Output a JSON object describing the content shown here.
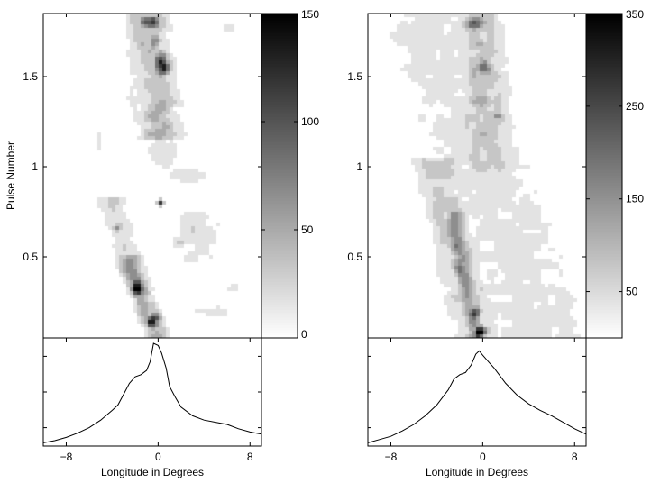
{
  "chart_data": [
    {
      "type": "heatmap",
      "panel": "left-top",
      "ylabel": "Pulse Number",
      "xlim": [
        -10,
        9
      ],
      "ylim": [
        0.05,
        1.85
      ],
      "yticks": [
        0.5,
        1,
        1.5
      ],
      "ytick_labels": [
        "0.5",
        "1",
        "1.5"
      ],
      "colorbar": {
        "ticks": [
          0,
          50,
          100,
          150
        ],
        "labels": [
          "0",
          "50",
          "100",
          "150"
        ],
        "max": 150,
        "color_low": "#ffffff",
        "color_high": "#000000"
      },
      "tracks": [
        {
          "y_range": [
            0.05,
            0.78
          ],
          "x_start": -0.1,
          "x_end": -4.0,
          "width": 1.3,
          "value": 22
        },
        {
          "y_range": [
            0.05,
            0.45
          ],
          "x_start": 0.0,
          "x_end": -2.5,
          "width": 0.9,
          "value": 60
        },
        {
          "y_range": [
            1.2,
            1.85
          ],
          "x_start": 0.2,
          "x_end": -1.0,
          "width": 1.8,
          "value": 40
        }
      ],
      "blobs": [
        {
          "x": -1.8,
          "y": 0.33,
          "sx": 0.5,
          "sy": 0.06,
          "value": 140
        },
        {
          "x": -0.4,
          "y": 0.14,
          "sx": 0.6,
          "sy": 0.045,
          "value": 150
        },
        {
          "x": 0.3,
          "y": 1.57,
          "sx": 0.65,
          "sy": 0.07,
          "value": 150
        },
        {
          "x": -0.8,
          "y": 1.8,
          "sx": 0.8,
          "sy": 0.04,
          "value": 140
        },
        {
          "x": -0.3,
          "y": 1.7,
          "sx": 0.5,
          "sy": 0.05,
          "value": 110
        },
        {
          "x": 0.2,
          "y": 0.8,
          "sx": 0.28,
          "sy": 0.018,
          "value": 95
        },
        {
          "x": -3.6,
          "y": 0.66,
          "sx": 0.4,
          "sy": 0.025,
          "value": 70
        },
        {
          "x": 1.8,
          "y": 0.58,
          "sx": 0.6,
          "sy": 0.03,
          "value": 35
        },
        {
          "x": 0.5,
          "y": 1.1,
          "sx": 1.5,
          "sy": 0.12,
          "value": 22
        },
        {
          "x": 2.5,
          "y": 0.95,
          "sx": 2.0,
          "sy": 0.05,
          "value": 20
        },
        {
          "x": 3.5,
          "y": 0.62,
          "sx": 2.2,
          "sy": 0.2,
          "value": 20
        },
        {
          "x": -5.2,
          "y": 1.12,
          "sx": 0.3,
          "sy": 0.08,
          "value": 20
        },
        {
          "x": -2.4,
          "y": 1.4,
          "sx": 0.4,
          "sy": 0.08,
          "value": 20
        },
        {
          "x": 4.5,
          "y": 0.2,
          "sx": 2.0,
          "sy": 0.04,
          "value": 20
        },
        {
          "x": 6.3,
          "y": 1.77,
          "sx": 0.8,
          "sy": 0.02,
          "value": 20
        },
        {
          "x": 6.6,
          "y": 0.33,
          "sx": 0.6,
          "sy": 0.02,
          "value": 20
        }
      ]
    },
    {
      "type": "heatmap",
      "panel": "right-top",
      "xlim": [
        -10,
        9
      ],
      "ylim": [
        0.05,
        1.85
      ],
      "yticks": [
        0.5,
        1,
        1.5
      ],
      "ytick_labels": [
        "0.5",
        "1",
        "1.5"
      ],
      "colorbar": {
        "ticks": [
          50,
          150,
          250,
          350
        ],
        "labels": [
          "50",
          "150",
          "250",
          "350"
        ],
        "max": 350,
        "color_low": "#ffffff",
        "color_high": "#000000"
      },
      "tracks": [
        {
          "y_range": [
            0.05,
            1.85
          ],
          "x_start": 5.0,
          "x_end": -4.5,
          "width": 5.2,
          "value": 40
        },
        {
          "y_range": [
            0.05,
            1.0
          ],
          "x_start": -0.5,
          "x_end": -4.0,
          "width": 2.0,
          "value": 70
        },
        {
          "y_range": [
            1.0,
            1.85
          ],
          "x_start": 0.5,
          "x_end": -0.5,
          "width": 2.2,
          "value": 80
        },
        {
          "y_range": [
            0.05,
            0.7
          ],
          "x_start": -0.5,
          "x_end": -2.5,
          "width": 0.9,
          "value": 140
        }
      ],
      "blobs": [
        {
          "x": -0.3,
          "y": 0.08,
          "sx": 0.55,
          "sy": 0.04,
          "value": 350
        },
        {
          "x": -0.6,
          "y": 0.2,
          "sx": 0.5,
          "sy": 0.05,
          "value": 230
        },
        {
          "x": -2.0,
          "y": 0.42,
          "sx": 0.5,
          "sy": 0.04,
          "value": 230
        },
        {
          "x": -0.7,
          "y": 1.8,
          "sx": 1.0,
          "sy": 0.04,
          "value": 230
        },
        {
          "x": 0.2,
          "y": 1.55,
          "sx": 0.7,
          "sy": 0.05,
          "value": 170
        },
        {
          "x": 1.3,
          "y": 1.28,
          "sx": 0.4,
          "sy": 0.03,
          "value": 140
        },
        {
          "x": -0.2,
          "y": 1.68,
          "sx": 0.5,
          "sy": 0.04,
          "value": 170
        }
      ]
    },
    {
      "type": "line",
      "panel": "left-bottom",
      "xlabel": "Longitude in Degrees",
      "xlim": [
        -10,
        9
      ],
      "ylim": [
        0,
        1
      ],
      "xticks": [
        -8,
        0,
        8
      ],
      "xtick_labels": [
        "−8",
        "0",
        "8"
      ],
      "x": [
        -10,
        -9,
        -8,
        -7,
        -6,
        -5,
        -4,
        -3.5,
        -3,
        -2.5,
        -2,
        -1.5,
        -1,
        -0.7,
        -0.4,
        0,
        0.3,
        0.7,
        1,
        1.5,
        2,
        3,
        4,
        5,
        6,
        7,
        8,
        9
      ],
      "y": [
        0.03,
        0.05,
        0.08,
        0.12,
        0.17,
        0.24,
        0.33,
        0.38,
        0.48,
        0.58,
        0.64,
        0.66,
        0.7,
        0.78,
        0.95,
        0.93,
        0.86,
        0.72,
        0.55,
        0.45,
        0.36,
        0.28,
        0.24,
        0.22,
        0.2,
        0.16,
        0.13,
        0.11
      ]
    },
    {
      "type": "line",
      "panel": "right-bottom",
      "xlabel": "Longitude in Degrees",
      "xlim": [
        -10,
        9
      ],
      "ylim": [
        0,
        1
      ],
      "xticks": [
        -8,
        0,
        8
      ],
      "xtick_labels": [
        "−8",
        "0",
        "8"
      ],
      "x": [
        -10,
        -9,
        -8,
        -7,
        -6,
        -5,
        -4,
        -3,
        -2.5,
        -2,
        -1.5,
        -1,
        -0.6,
        -0.3,
        0,
        0.5,
        1,
        2,
        3,
        4,
        5,
        6,
        7,
        8,
        9
      ],
      "y": [
        0.03,
        0.06,
        0.09,
        0.14,
        0.2,
        0.28,
        0.38,
        0.52,
        0.62,
        0.66,
        0.68,
        0.75,
        0.85,
        0.88,
        0.84,
        0.78,
        0.72,
        0.58,
        0.47,
        0.39,
        0.33,
        0.28,
        0.22,
        0.16,
        0.11
      ]
    }
  ]
}
